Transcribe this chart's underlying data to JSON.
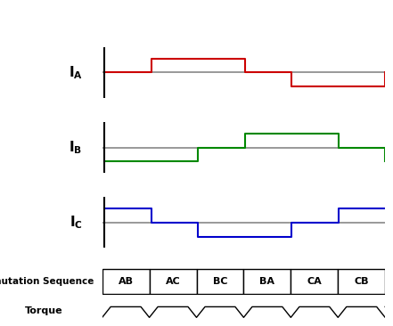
{
  "sequences": [
    "AB",
    "AC",
    "BC",
    "BA",
    "CA",
    "CB"
  ],
  "ia_color": "#cc0000",
  "ib_color": "#008800",
  "ic_color": "#0000cc",
  "baseline_color": "#888888",
  "bg_color": "#ffffff",
  "ia_levels": [
    0,
    1,
    1,
    0,
    -1,
    -1,
    0
  ],
  "ib_levels": [
    -1,
    -1,
    0,
    1,
    1,
    0,
    -1
  ],
  "ic_levels": [
    1,
    0,
    -1,
    -1,
    0,
    1,
    1
  ],
  "commutation_label": "Commutation Sequence",
  "torque_label": "Torque"
}
